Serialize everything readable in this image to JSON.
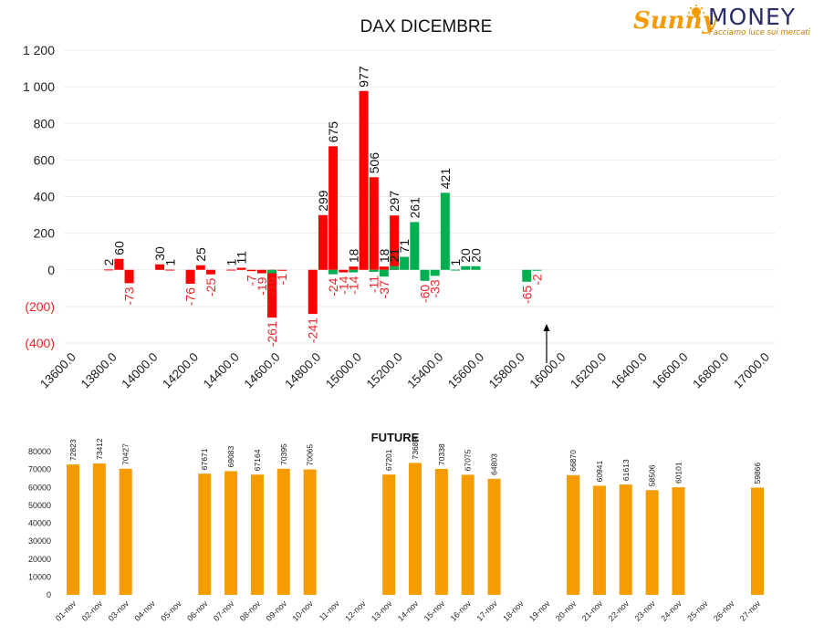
{
  "logo": {
    "brand_part1": "Sunny",
    "brand_part2": "MONEY",
    "tagline": "Facciamo luce sui mercati",
    "color_orange": "#f59a00",
    "color_navy": "#2b2d6b",
    "icon": "sun-icon"
  },
  "colors": {
    "red": "#ff0000",
    "green": "#00b050",
    "orange": "#f59c00",
    "axis_text": "#222222",
    "negative_text": "#e8252a"
  },
  "chart_data": [
    {
      "type": "bar",
      "title": "DAX DICEMBRE",
      "ylim": [
        -400,
        1200
      ],
      "yticks": [
        -400,
        -200,
        0,
        200,
        400,
        600,
        800,
        1000,
        1200
      ],
      "ytick_labels": [
        "(400)",
        "(200)",
        "0",
        "200",
        "400",
        "600",
        "800",
        "1 000",
        "1 200"
      ],
      "xtick_labels": [
        "13600.0",
        "13800.0",
        "14000.0",
        "14200.0",
        "14400.0",
        "14600.0",
        "14800.0",
        "15000.0",
        "15200.0",
        "15400.0",
        "15600.0",
        "15800.0",
        "16000.0",
        "16200.0",
        "16400.0",
        "16600.0",
        "16800.0",
        "17000.0"
      ],
      "strikes": [
        13600,
        13650,
        13700,
        13750,
        13800,
        13850,
        13900,
        13950,
        14000,
        14050,
        14100,
        14150,
        14200,
        14250,
        14300,
        14350,
        14400,
        14450,
        14500,
        14550,
        14600,
        14650,
        14700,
        14750,
        14800,
        14850,
        14900,
        14950,
        15000,
        15050,
        15100,
        15150,
        15200,
        15250,
        15300,
        15350,
        15400,
        15450,
        15500,
        15550,
        15600,
        15650,
        15700,
        15750,
        15800,
        15850,
        15900,
        15950,
        16000,
        16050,
        16100,
        16150,
        16200,
        16250,
        16300,
        16350,
        16400,
        16450,
        16500,
        16550,
        16600,
        16650,
        16700,
        16750,
        16800,
        16850,
        16900,
        16950,
        17000
      ],
      "series": [
        {
          "color": "red",
          "values": [
            null,
            null,
            null,
            null,
            2,
            60,
            -73,
            null,
            null,
            30,
            1,
            null,
            -76,
            25,
            -25,
            null,
            1,
            11,
            -7,
            -19,
            -261,
            -1,
            null,
            null,
            -241,
            299,
            675,
            -14,
            18,
            977,
            506,
            18,
            297,
            null,
            null,
            null,
            null,
            null,
            null,
            null,
            null,
            null,
            null,
            null,
            null,
            null,
            null,
            null,
            null,
            null,
            null,
            null,
            null,
            null,
            null,
            null,
            null,
            null,
            null,
            null,
            null,
            null,
            null,
            null,
            null,
            null,
            null,
            null,
            null
          ]
        },
        {
          "color": "green",
          "values": [
            null,
            null,
            null,
            null,
            null,
            null,
            null,
            null,
            null,
            null,
            null,
            null,
            null,
            null,
            null,
            null,
            null,
            null,
            null,
            -19,
            null,
            null,
            null,
            null,
            null,
            -24,
            null,
            -14,
            null,
            -11,
            -37,
            21,
            71,
            261,
            -60,
            -33,
            421,
            1,
            20,
            20,
            null,
            null,
            null,
            null,
            -65,
            -2,
            null,
            null,
            null,
            null,
            null,
            null,
            null,
            null,
            null,
            null,
            null,
            null,
            null,
            null,
            null,
            null,
            null,
            null,
            null,
            null,
            null,
            null,
            null
          ]
        }
      ],
      "annotation": "arrow-up-marker"
    },
    {
      "type": "bar",
      "title": "FUTURE",
      "ylim": [
        0,
        80000
      ],
      "yticks": [
        0,
        10000,
        20000,
        30000,
        40000,
        50000,
        60000,
        70000,
        80000
      ],
      "ytick_labels": [
        "0",
        "10000",
        "20000",
        "30000",
        "40000",
        "50000",
        "60000",
        "70000",
        "80000"
      ],
      "categories": [
        "01-nov",
        "02-nov",
        "03-nov",
        "04-nov",
        "05-nov",
        "06-nov",
        "07-nov",
        "08-nov",
        "09-nov",
        "10-nov",
        "11-nov",
        "12-nov",
        "13-nov",
        "14-nov",
        "15-nov",
        "16-nov",
        "17-nov",
        "18-nov",
        "19-nov",
        "20-nov",
        "21-nov",
        "22-nov",
        "23-nov",
        "24-nov",
        "25-nov",
        "26-nov",
        "27-nov"
      ],
      "values": [
        72823,
        73412,
        70427,
        null,
        null,
        67671,
        69083,
        67164,
        70395,
        70065,
        null,
        null,
        67201,
        73689,
        70338,
        67075,
        64803,
        null,
        null,
        66870,
        60941,
        61613,
        58506,
        60101,
        null,
        null,
        59866
      ],
      "color": "orange"
    }
  ]
}
